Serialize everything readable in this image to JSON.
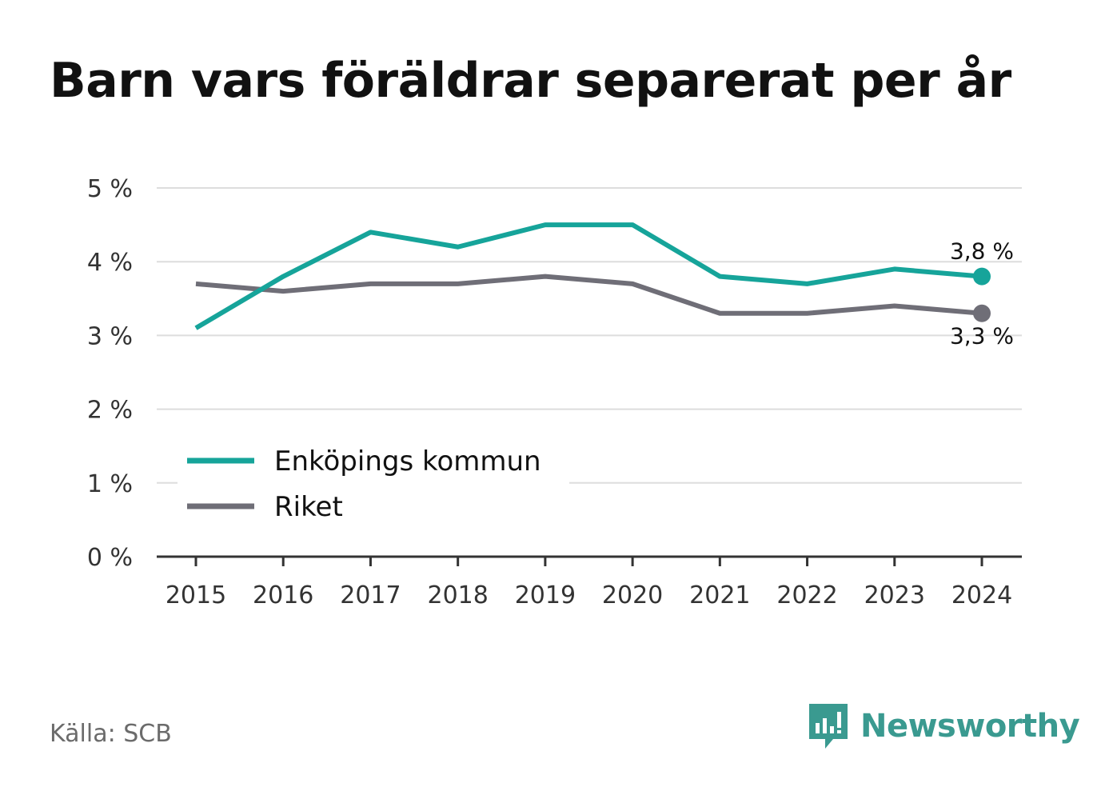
{
  "chart_data": {
    "type": "line",
    "title": "Barn vars föräldrar separerat per år",
    "xlabel": "",
    "ylabel": "",
    "x": [
      "2015",
      "2016",
      "2017",
      "2018",
      "2019",
      "2020",
      "2021",
      "2022",
      "2023",
      "2024"
    ],
    "ylim": [
      0,
      5
    ],
    "yticks": [
      "0 %",
      "1 %",
      "2 %",
      "3 %",
      "4 %",
      "5 %"
    ],
    "grid": true,
    "legend_position": "bottom-left",
    "series": [
      {
        "name": "Enköpings kommun",
        "color": "#16a49a",
        "values": [
          3.1,
          3.8,
          4.4,
          4.2,
          4.5,
          4.5,
          3.8,
          3.7,
          3.9,
          3.8
        ],
        "end_label": "3,8 %"
      },
      {
        "name": "Riket",
        "color": "#6f6e77",
        "values": [
          3.7,
          3.6,
          3.7,
          3.7,
          3.8,
          3.7,
          3.3,
          3.3,
          3.4,
          3.3
        ],
        "end_label": "3,3 %"
      }
    ]
  },
  "footer": {
    "source": "Källa: SCB",
    "brand": "Newsworthy",
    "brand_color": "#3a9a90",
    "brand_icon": "newsworthy-logo-icon"
  }
}
